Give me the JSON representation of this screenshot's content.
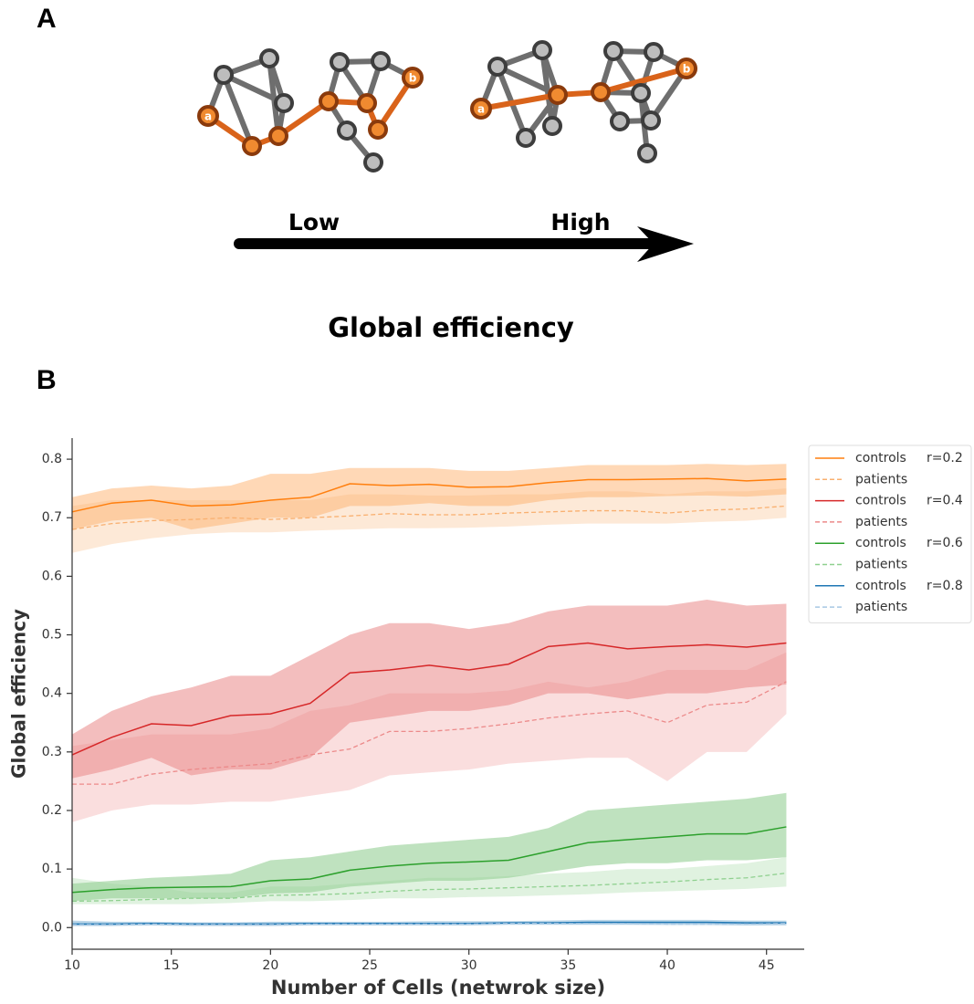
{
  "panel_a": {
    "label": "A",
    "networks": [
      {
        "source": "a",
        "target": "b"
      },
      {
        "source": "a",
        "target": "b"
      }
    ],
    "scale": {
      "low": "Low",
      "high": "High"
    },
    "caption": "Global efficiency"
  },
  "chart_data": {
    "type": "line",
    "panel_label": "B",
    "xlabel": "Number of Cells (netwrok size)",
    "ylabel": "Global efficiency",
    "x": [
      10,
      12,
      14,
      16,
      18,
      20,
      22,
      24,
      26,
      28,
      30,
      32,
      34,
      36,
      38,
      40,
      42,
      44,
      46
    ],
    "xlim": [
      10,
      46.9
    ],
    "ylim": [
      -0.037,
      0.836
    ],
    "xticks": [
      10,
      15,
      20,
      25,
      30,
      35,
      40,
      45
    ],
    "yticks": [
      {
        "value": 0,
        "label": "0.0"
      },
      0.1,
      0.2,
      0.3,
      0.4,
      0.5,
      0.6,
      0.7,
      0.8
    ],
    "legend": "right",
    "series": [
      {
        "name": "controls",
        "group": "r=0.2",
        "color": "#ff7f0e",
        "style": "solid",
        "values": [
          0.71,
          0.725,
          0.73,
          0.72,
          0.722,
          0.73,
          0.735,
          0.758,
          0.755,
          0.757,
          0.752,
          0.753,
          0.76,
          0.765,
          0.765,
          0.766,
          0.767,
          0.763,
          0.766
        ],
        "lower": [
          0.68,
          0.695,
          0.7,
          0.68,
          0.69,
          0.7,
          0.7,
          0.72,
          0.72,
          0.725,
          0.72,
          0.72,
          0.73,
          0.735,
          0.735,
          0.737,
          0.738,
          0.736,
          0.74
        ],
        "upper": [
          0.735,
          0.75,
          0.755,
          0.75,
          0.755,
          0.775,
          0.775,
          0.785,
          0.785,
          0.785,
          0.78,
          0.78,
          0.785,
          0.79,
          0.79,
          0.79,
          0.792,
          0.79,
          0.792
        ]
      },
      {
        "name": "patients",
        "color": "#f9b070",
        "style": "dashed",
        "values": [
          0.68,
          0.69,
          0.695,
          0.697,
          0.7,
          0.697,
          0.7,
          0.703,
          0.707,
          0.705,
          0.705,
          0.708,
          0.71,
          0.712,
          0.712,
          0.708,
          0.713,
          0.715,
          0.72
        ],
        "lower": [
          0.64,
          0.655,
          0.665,
          0.672,
          0.675,
          0.675,
          0.678,
          0.68,
          0.682,
          0.682,
          0.683,
          0.685,
          0.688,
          0.69,
          0.69,
          0.69,
          0.693,
          0.695,
          0.7
        ],
        "upper": [
          0.72,
          0.73,
          0.73,
          0.73,
          0.73,
          0.73,
          0.73,
          0.74,
          0.74,
          0.738,
          0.738,
          0.74,
          0.74,
          0.745,
          0.745,
          0.74,
          0.745,
          0.745,
          0.75
        ]
      },
      {
        "name": "controls",
        "group": "r=0.4",
        "color": "#d62728",
        "style": "solid",
        "values": [
          0.295,
          0.325,
          0.348,
          0.345,
          0.362,
          0.365,
          0.383,
          0.435,
          0.44,
          0.448,
          0.44,
          0.45,
          0.48,
          0.486,
          0.476,
          0.48,
          0.483,
          0.479,
          0.486
        ],
        "lower": [
          0.255,
          0.27,
          0.29,
          0.26,
          0.27,
          0.27,
          0.29,
          0.35,
          0.36,
          0.37,
          0.37,
          0.38,
          0.4,
          0.4,
          0.39,
          0.4,
          0.4,
          0.41,
          0.415
        ],
        "upper": [
          0.33,
          0.37,
          0.395,
          0.41,
          0.43,
          0.43,
          0.465,
          0.5,
          0.52,
          0.52,
          0.51,
          0.52,
          0.54,
          0.55,
          0.55,
          0.55,
          0.56,
          0.55,
          0.553
        ]
      },
      {
        "name": "patients",
        "color": "#ec8a8a",
        "style": "dashed",
        "values": [
          0.245,
          0.245,
          0.262,
          0.27,
          0.275,
          0.28,
          0.295,
          0.305,
          0.335,
          0.335,
          0.34,
          0.348,
          0.358,
          0.365,
          0.37,
          0.35,
          0.38,
          0.385,
          0.42
        ],
        "lower": [
          0.18,
          0.2,
          0.21,
          0.21,
          0.215,
          0.215,
          0.225,
          0.235,
          0.26,
          0.265,
          0.27,
          0.28,
          0.285,
          0.29,
          0.29,
          0.25,
          0.3,
          0.3,
          0.365
        ],
        "upper": [
          0.31,
          0.32,
          0.33,
          0.33,
          0.33,
          0.34,
          0.37,
          0.38,
          0.4,
          0.4,
          0.4,
          0.405,
          0.42,
          0.41,
          0.42,
          0.44,
          0.44,
          0.44,
          0.47
        ]
      },
      {
        "name": "controls",
        "group": "r=0.6",
        "color": "#2ca02c",
        "style": "solid",
        "values": [
          0.06,
          0.065,
          0.068,
          0.069,
          0.07,
          0.08,
          0.083,
          0.098,
          0.105,
          0.11,
          0.112,
          0.115,
          0.13,
          0.145,
          0.15,
          0.155,
          0.16,
          0.16,
          0.172
        ],
        "lower": [
          0.045,
          0.05,
          0.05,
          0.05,
          0.05,
          0.058,
          0.06,
          0.07,
          0.075,
          0.08,
          0.08,
          0.085,
          0.095,
          0.105,
          0.11,
          0.11,
          0.115,
          0.115,
          0.12
        ],
        "upper": [
          0.075,
          0.08,
          0.085,
          0.088,
          0.092,
          0.115,
          0.12,
          0.13,
          0.14,
          0.145,
          0.15,
          0.155,
          0.17,
          0.2,
          0.205,
          0.21,
          0.215,
          0.22,
          0.23
        ]
      },
      {
        "name": "patients",
        "color": "#8fd08f",
        "style": "dashed",
        "values": [
          0.045,
          0.046,
          0.048,
          0.05,
          0.05,
          0.055,
          0.056,
          0.058,
          0.062,
          0.065,
          0.066,
          0.068,
          0.07,
          0.072,
          0.075,
          0.078,
          0.082,
          0.085,
          0.093
        ],
        "lower": [
          0.04,
          0.04,
          0.04,
          0.04,
          0.042,
          0.045,
          0.045,
          0.047,
          0.05,
          0.05,
          0.052,
          0.053,
          0.055,
          0.057,
          0.06,
          0.062,
          0.064,
          0.066,
          0.07
        ],
        "upper": [
          0.085,
          0.075,
          0.07,
          0.06,
          0.06,
          0.07,
          0.07,
          0.075,
          0.08,
          0.085,
          0.085,
          0.088,
          0.092,
          0.095,
          0.1,
          0.1,
          0.105,
          0.11,
          0.12
        ]
      },
      {
        "name": "controls",
        "group": "r=0.8",
        "color": "#1f77b4",
        "style": "solid",
        "values": [
          0.006,
          0.006,
          0.007,
          0.006,
          0.006,
          0.006,
          0.007,
          0.007,
          0.007,
          0.007,
          0.007,
          0.008,
          0.008,
          0.009,
          0.009,
          0.009,
          0.009,
          0.008,
          0.008
        ],
        "lower": [
          0.003,
          0.003,
          0.004,
          0.003,
          0.003,
          0.003,
          0.004,
          0.004,
          0.004,
          0.004,
          0.004,
          0.005,
          0.005,
          0.005,
          0.005,
          0.005,
          0.005,
          0.004,
          0.004
        ],
        "upper": [
          0.012,
          0.01,
          0.01,
          0.009,
          0.009,
          0.01,
          0.01,
          0.01,
          0.01,
          0.011,
          0.011,
          0.011,
          0.012,
          0.013,
          0.013,
          0.013,
          0.013,
          0.012,
          0.012
        ]
      },
      {
        "name": "patients",
        "color": "#a8c8e4",
        "style": "dashed",
        "values": [
          0.005,
          0.005,
          0.006,
          0.005,
          0.005,
          0.005,
          0.006,
          0.006,
          0.006,
          0.006,
          0.006,
          0.007,
          0.007,
          0.007,
          0.007,
          0.006,
          0.006,
          0.006,
          0.007
        ],
        "lower": [
          0.002,
          0.002,
          0.003,
          0.002,
          0.002,
          0.002,
          0.003,
          0.003,
          0.003,
          0.003,
          0.003,
          0.004,
          0.004,
          0.004,
          0.004,
          0.003,
          0.003,
          0.003,
          0.004
        ],
        "upper": [
          0.009,
          0.009,
          0.009,
          0.008,
          0.008,
          0.009,
          0.009,
          0.009,
          0.009,
          0.009,
          0.009,
          0.01,
          0.01,
          0.011,
          0.011,
          0.01,
          0.01,
          0.01,
          0.011
        ]
      }
    ]
  }
}
